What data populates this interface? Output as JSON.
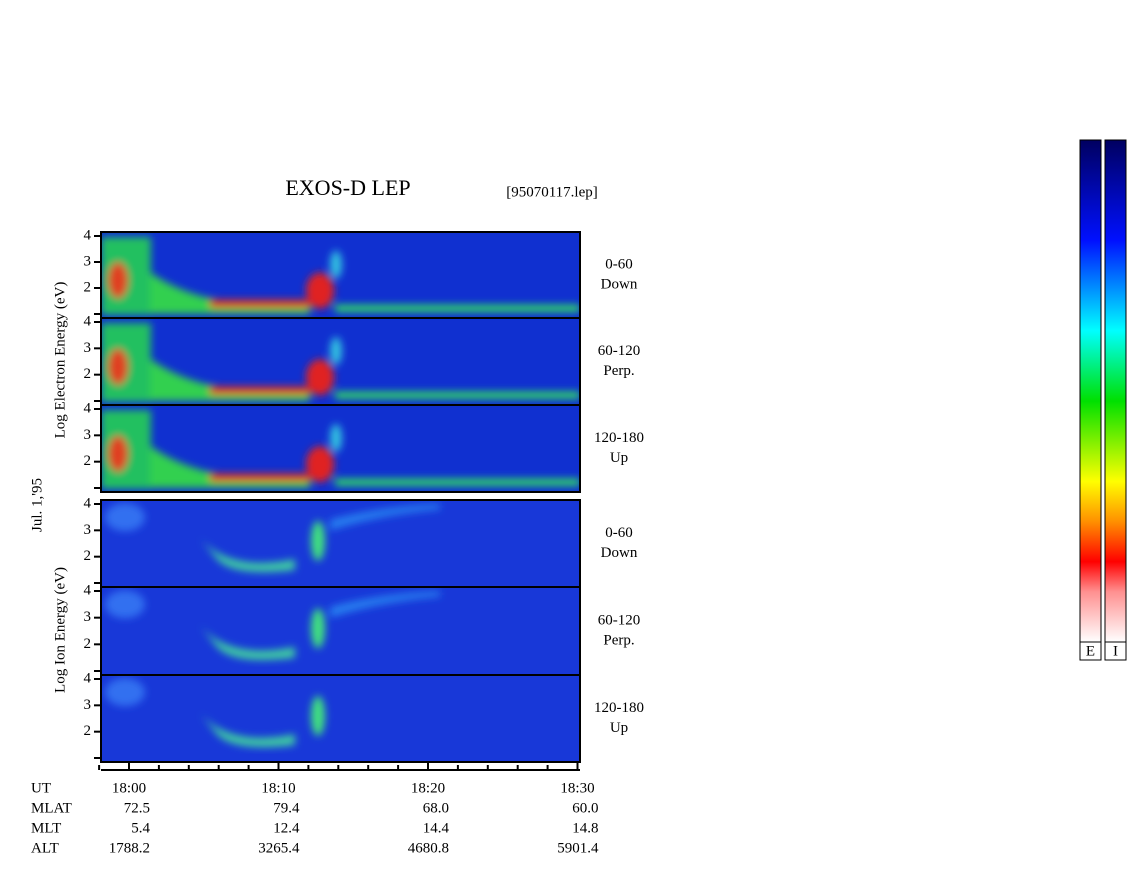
{
  "header": {
    "title": "EXOS-D LEP",
    "file": "[95070117.lep]"
  },
  "date": "Jul. 1,'95",
  "panel_yticks": [
    {
      "value": 1,
      "label": null
    },
    2,
    3,
    4
  ],
  "groups": [
    {
      "axis_label": "Log  Electron  Energy (eV)",
      "panels": [
        {
          "range": "0-60",
          "direction": "Down"
        },
        {
          "range": "60-120",
          "direction": "Perp."
        },
        {
          "range": "120-180",
          "direction": "Up"
        }
      ]
    },
    {
      "axis_label": "Log  Ion  Energy (eV)",
      "panels": [
        {
          "range": "0-60",
          "direction": "Down"
        },
        {
          "range": "60-120",
          "direction": "Perp."
        },
        {
          "range": "120-180",
          "direction": "Up"
        }
      ]
    }
  ],
  "table": {
    "row_labels": [
      "UT",
      "MLAT",
      "MLT",
      "ALT"
    ],
    "columns": [
      [
        "18:00",
        "72.5",
        "5.4",
        "1788.2"
      ],
      [
        "18:10",
        "79.4",
        "12.4",
        "3265.4"
      ],
      [
        "18:20",
        "68.0",
        "14.4",
        "4680.8"
      ],
      [
        "18:30",
        "60.0",
        "14.8",
        "5901.4"
      ]
    ]
  },
  "colorbars": [
    "E",
    "I"
  ]
}
